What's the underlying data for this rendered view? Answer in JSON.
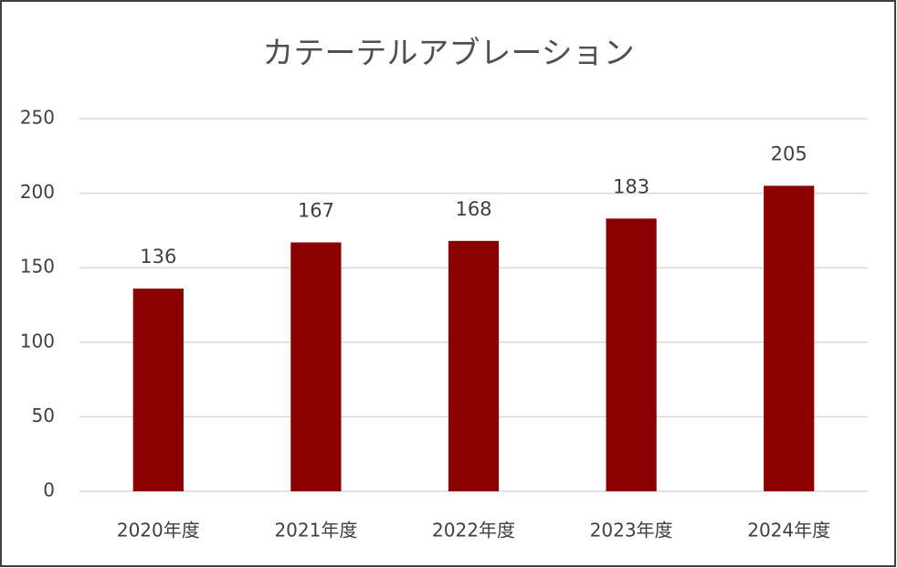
{
  "chart_data": {
    "type": "bar",
    "title": "カテーテルアブレーション",
    "categories": [
      "2020年度",
      "2021年度",
      "2022年度",
      "2023年度",
      "2024年度"
    ],
    "values": [
      136,
      167,
      168,
      183,
      205
    ],
    "color": "#8b0000",
    "ylim": [
      0,
      250
    ],
    "yticks": [
      0,
      50,
      100,
      150,
      200,
      250
    ],
    "grid": true
  }
}
